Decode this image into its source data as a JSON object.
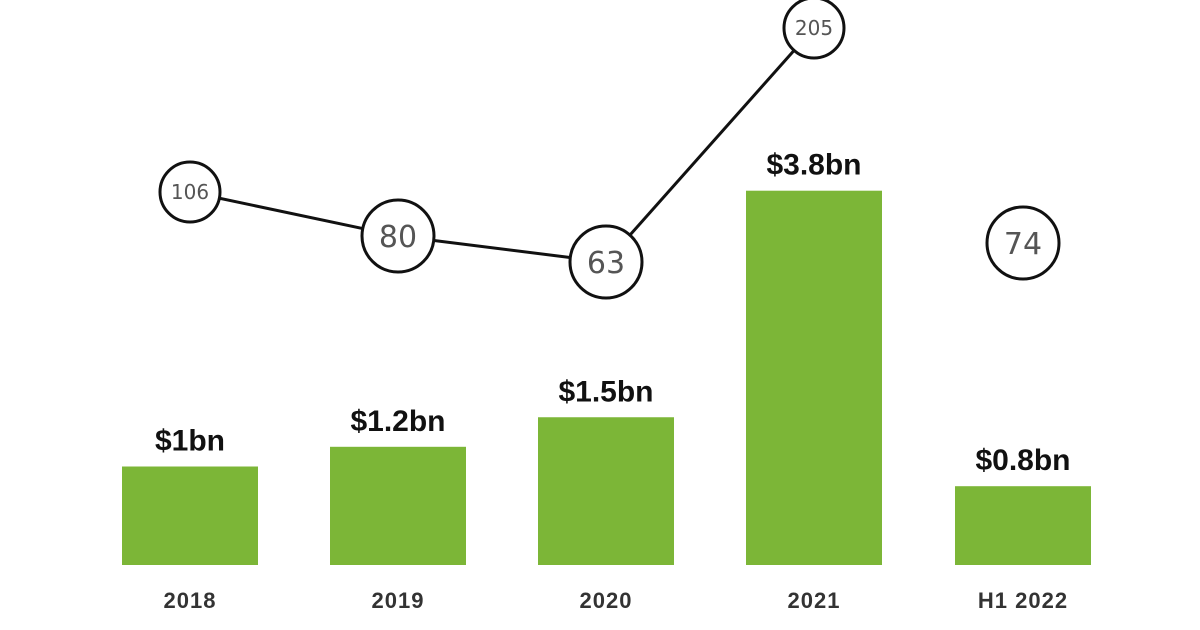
{
  "chart_data": {
    "type": "bar+line",
    "categories": [
      "2018",
      "2019",
      "2020",
      "2021",
      "H1 2022"
    ],
    "bar_series": {
      "unit": "$bn",
      "values": [
        1,
        1.2,
        1.5,
        3.8,
        0.8
      ],
      "labels": [
        "$1bn",
        "$1.2bn",
        "$1.5bn",
        "$3.8bn",
        "$0.8bn"
      ],
      "color": "#7cb637"
    },
    "line_series": {
      "values": [
        106,
        80,
        63,
        205,
        74
      ],
      "labels": [
        "106",
        "80",
        "63",
        "205",
        "74"
      ],
      "connected_through_index": 3,
      "line_color": "#111111",
      "marker_fill": "#ffffff",
      "marker_stroke": "#111111"
    },
    "title": "",
    "xlabel": "",
    "ylabel": "",
    "grid": false,
    "legend": "none"
  }
}
